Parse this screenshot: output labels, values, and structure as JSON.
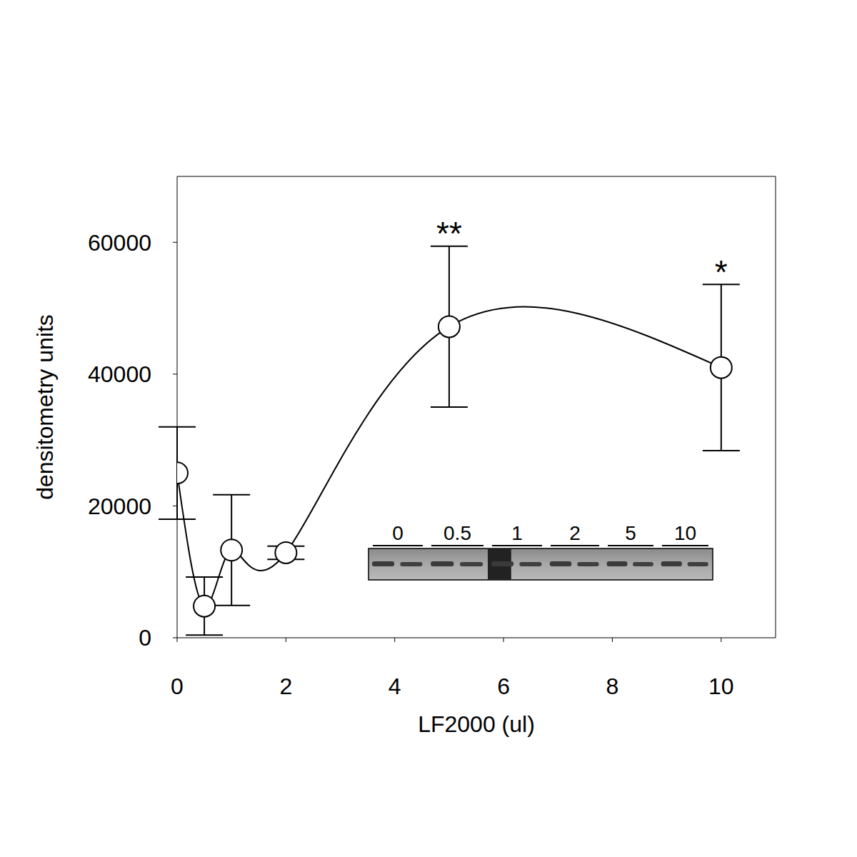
{
  "chart_data": {
    "type": "scatter",
    "x_label": "LF2000 (ul)",
    "y_label": "densitometry units",
    "x": [
      0,
      0.5,
      1,
      2,
      5,
      10
    ],
    "values": [
      25000,
      4800,
      13300,
      12900,
      47200,
      41000
    ],
    "errors": [
      7000,
      4400,
      8400,
      1000,
      12200,
      12600
    ],
    "marker": "circle",
    "line_style": "solid",
    "color": "#000000",
    "xlim": [
      0,
      11
    ],
    "xticks": [
      0,
      2,
      4,
      6,
      8,
      10
    ],
    "ylim": [
      0,
      70000
    ],
    "yticks": [
      0,
      20000,
      40000,
      60000
    ],
    "grid": false,
    "annotations": [
      {
        "text": "**",
        "x": 5,
        "y": 59400
      },
      {
        "text": "*",
        "x": 10,
        "y": 53500
      }
    ],
    "blot_lanes": [
      "0",
      "0.5",
      "1",
      "2",
      "5",
      "10"
    ]
  }
}
